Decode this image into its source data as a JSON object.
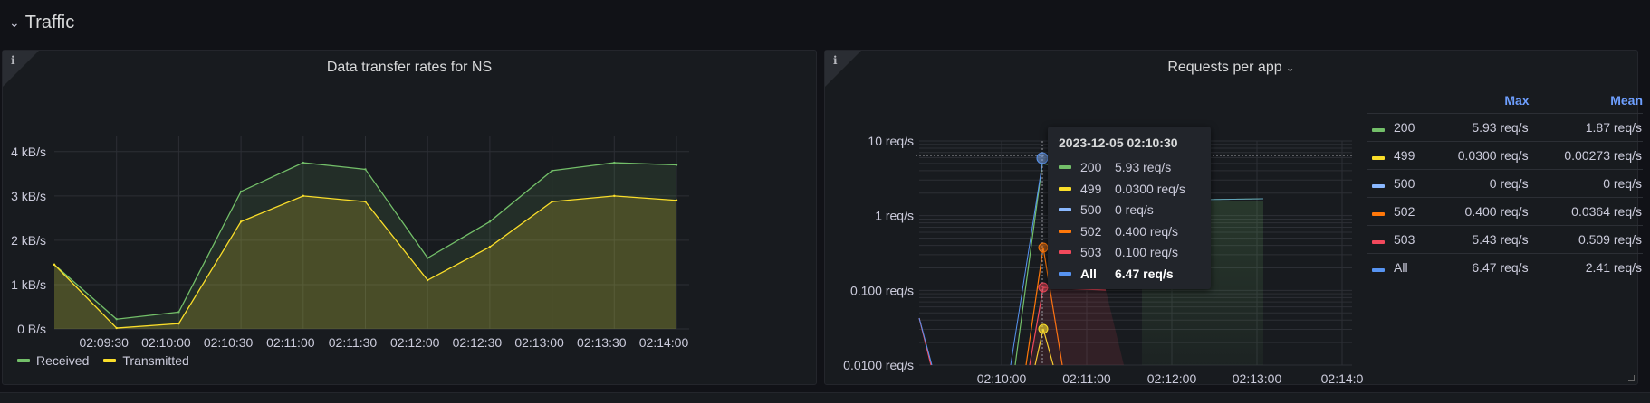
{
  "row": {
    "title": "Traffic",
    "collapse_icon": "chevron-down-icon"
  },
  "panel1": {
    "title": "Data transfer rates for NS",
    "info_icon": "info-icon",
    "legend": [
      {
        "name": "Received",
        "color": "#73bf69"
      },
      {
        "name": "Transmitted",
        "color": "#fade2a"
      }
    ]
  },
  "panel2": {
    "title": "Requests per app",
    "info_icon": "info-icon",
    "dropdown_icon": "chevron-down-icon",
    "legend_headers": {
      "max": "Max",
      "mean": "Mean"
    },
    "legend_rows": [
      {
        "name": "200",
        "color": "#73bf69",
        "max": "5.93 req/s",
        "mean": "1.87 req/s"
      },
      {
        "name": "499",
        "color": "#fade2a",
        "max": "0.0300 req/s",
        "mean": "0.00273 req/s"
      },
      {
        "name": "500",
        "color": "#8ab8ff",
        "max": "0 req/s",
        "mean": "0 req/s"
      },
      {
        "name": "502",
        "color": "#ff780a",
        "max": "0.400 req/s",
        "mean": "0.0364 req/s"
      },
      {
        "name": "503",
        "color": "#f2495c",
        "max": "5.43 req/s",
        "mean": "0.509 req/s"
      },
      {
        "name": "All",
        "color": "#5794f2",
        "max": "6.47 req/s",
        "mean": "2.41 req/s"
      }
    ],
    "tooltip": {
      "time": "2023-12-05 02:10:30",
      "rows": [
        {
          "name": "200",
          "color": "#73bf69",
          "value": "5.93 req/s"
        },
        {
          "name": "499",
          "color": "#fade2a",
          "value": "0.0300 req/s"
        },
        {
          "name": "500",
          "color": "#8ab8ff",
          "value": "0 req/s"
        },
        {
          "name": "502",
          "color": "#ff780a",
          "value": "0.400 req/s"
        },
        {
          "name": "503",
          "color": "#f2495c",
          "value": "0.100 req/s"
        },
        {
          "name": "All",
          "color": "#5794f2",
          "value": "6.47 req/s",
          "bold": true
        }
      ]
    }
  },
  "chart_data": [
    {
      "type": "area",
      "title": "Data transfer rates for NS",
      "x": [
        "02:09:00",
        "02:09:30",
        "02:10:00",
        "02:10:30",
        "02:11:00",
        "02:11:30",
        "02:12:00",
        "02:12:30",
        "02:13:00",
        "02:13:30",
        "02:14:00"
      ],
      "x_tick_labels": [
        "02:09:30",
        "02:10:00",
        "02:10:30",
        "02:11:00",
        "02:11:30",
        "02:12:00",
        "02:12:30",
        "02:13:00",
        "02:13:30",
        "02:14:00"
      ],
      "y_tick_labels": [
        "0 B/s",
        "1 kB/s",
        "2 kB/s",
        "3 kB/s",
        "4 kB/s"
      ],
      "ylim": [
        0,
        4.2
      ],
      "series": [
        {
          "name": "Received",
          "color": "#73bf69",
          "values": [
            1.45,
            0.22,
            0.38,
            3.1,
            3.75,
            3.6,
            1.6,
            2.42,
            3.57,
            3.75,
            3.7
          ]
        },
        {
          "name": "Transmitted",
          "color": "#fade2a",
          "values": [
            1.45,
            0.02,
            0.12,
            2.42,
            3.0,
            2.87,
            1.1,
            1.85,
            2.87,
            3.0,
            2.9
          ]
        }
      ],
      "grid": true,
      "legend": "bottom-left"
    },
    {
      "type": "line",
      "title": "Requests per app",
      "y_scale": "log",
      "ylim": [
        0.01,
        10
      ],
      "y_tick_labels": [
        "0.0100 req/s",
        "0.100 req/s",
        "1 req/s",
        "10 req/s"
      ],
      "x_tick_labels": [
        "02:10:00",
        "02:11:00",
        "02:12:00",
        "02:13:00",
        "02:14:0"
      ],
      "grid": true,
      "legend": "right"
    }
  ]
}
